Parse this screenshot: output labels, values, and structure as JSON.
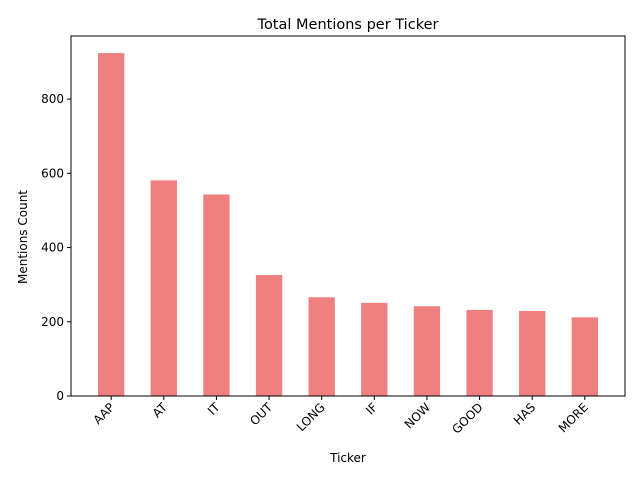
{
  "chart_data": {
    "type": "bar",
    "title": "Total Mentions per Ticker",
    "xlabel": "Ticker",
    "ylabel": "Mentions Count",
    "categories": [
      "AAP",
      "AT",
      "IT",
      "OUT",
      "LONG",
      "IF",
      "NOW",
      "GOOD",
      "HAS",
      "MORE"
    ],
    "values": [
      924,
      581,
      543,
      326,
      266,
      251,
      242,
      232,
      229,
      212
    ],
    "ylim": [
      0,
      970
    ],
    "yticks": [
      0,
      200,
      400,
      600,
      800
    ],
    "bar_color": "#f08080",
    "grid": false,
    "legend": "none"
  }
}
